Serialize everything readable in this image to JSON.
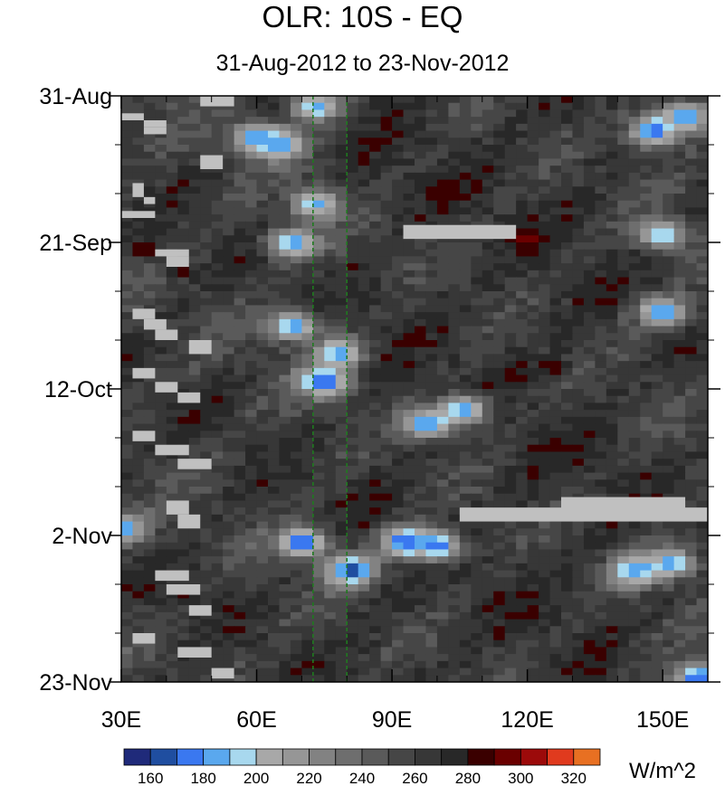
{
  "chart_data": {
    "type": "heatmap",
    "title": "OLR: 10S - EQ",
    "subtitle": "31-Aug-2012 to 23-Nov-2012",
    "x": {
      "range_deg": [
        30,
        160
      ],
      "ticks": [
        30,
        60,
        90,
        120,
        150
      ],
      "tick_labels": [
        "30E",
        "60E",
        "90E",
        "120E",
        "150E"
      ]
    },
    "y": {
      "range_days": [
        0,
        84
      ],
      "ticks": [
        0,
        21,
        42,
        63,
        84
      ],
      "tick_labels": [
        "31-Aug",
        "21-Sep",
        "12-Oct",
        "2-Nov",
        "23-Nov"
      ]
    },
    "reference_lines_deg": [
      72.5,
      80
    ],
    "colorbar": {
      "unit": "W/m^2",
      "levels": [
        160,
        170,
        180,
        190,
        200,
        210,
        220,
        230,
        240,
        250,
        260,
        270,
        280,
        290,
        300,
        310,
        320
      ],
      "labels": [
        "160",
        "180",
        "200",
        "220",
        "240",
        "260",
        "280",
        "300",
        "320"
      ],
      "colors": [
        "#1f2a7a",
        "#1f4ea0",
        "#3a78f0",
        "#5aa8ee",
        "#a8d8ee",
        "#a8a8a8",
        "#969696",
        "#828282",
        "#6e6e6e",
        "#5a5a5a",
        "#464646",
        "#373737",
        "#282828",
        "#3a0000",
        "#6a0000",
        "#9c0a0a",
        "#e03a1e",
        "#e87022"
      ]
    },
    "low_olr_features": [
      {
        "lon": 73,
        "day": 1.5,
        "value": 185
      },
      {
        "lon": 60,
        "day": 6,
        "value": 180
      },
      {
        "lon": 65,
        "day": 7,
        "value": 178
      },
      {
        "lon": 148,
        "day": 5,
        "value": 170
      },
      {
        "lon": 155,
        "day": 3,
        "value": 178
      },
      {
        "lon": 73,
        "day": 15.5,
        "value": 188
      },
      {
        "lon": 68,
        "day": 21,
        "value": 182
      },
      {
        "lon": 150,
        "day": 20,
        "value": 192
      },
      {
        "lon": 150,
        "day": 31,
        "value": 178
      },
      {
        "lon": 68,
        "day": 33,
        "value": 182
      },
      {
        "lon": 75,
        "day": 41,
        "value": 168
      },
      {
        "lon": 78,
        "day": 37,
        "value": 180
      },
      {
        "lon": 98,
        "day": 47,
        "value": 178
      },
      {
        "lon": 106,
        "day": 45,
        "value": 182
      },
      {
        "lon": 70,
        "day": 64,
        "value": 168
      },
      {
        "lon": 81,
        "day": 68,
        "value": 162
      },
      {
        "lon": 93,
        "day": 64,
        "value": 168
      },
      {
        "lon": 100,
        "day": 64.5,
        "value": 172
      },
      {
        "lon": 30,
        "day": 62,
        "value": 178
      },
      {
        "lon": 144,
        "day": 68,
        "value": 176
      },
      {
        "lon": 152,
        "day": 67,
        "value": 184
      },
      {
        "lon": 158,
        "day": 83.5,
        "value": 168
      }
    ],
    "high_olr_features": [
      {
        "lon": 35,
        "day": 22,
        "value": 295
      },
      {
        "lon": 43,
        "day": 25,
        "value": 292
      },
      {
        "lon": 120,
        "day": 20.5,
        "value": 292
      },
      {
        "lon": 126,
        "day": 39,
        "value": 290
      },
      {
        "lon": 44,
        "day": 71,
        "value": 292
      }
    ],
    "missing_segments": [
      {
        "lon": [
          30,
          35
        ],
        "day": [
          2.5,
          3.5
        ]
      },
      {
        "lon": [
          35,
          40
        ],
        "day": [
          3.5,
          4.5
        ]
      },
      {
        "lon": [
          35,
          40
        ],
        "day": [
          4.5,
          5.5
        ]
      },
      {
        "lon": [
          47.5,
          52.5
        ],
        "day": [
          8.5,
          10.5
        ]
      },
      {
        "lon": [
          47.5,
          55
        ],
        "day": [
          0,
          1.5
        ]
      },
      {
        "lon": [
          32.5,
          35
        ],
        "day": [
          12.5,
          14.5
        ]
      },
      {
        "lon": [
          35,
          37.5
        ],
        "day": [
          14.5,
          15.5
        ]
      },
      {
        "lon": [
          30,
          37.5
        ],
        "day": [
          16.5,
          17.5
        ]
      },
      {
        "lon": [
          37.5,
          45
        ],
        "day": [
          22,
          23
        ]
      },
      {
        "lon": [
          40,
          45
        ],
        "day": [
          23,
          24.5
        ]
      },
      {
        "lon": [
          32.5,
          37.5
        ],
        "day": [
          30.5,
          32
        ]
      },
      {
        "lon": [
          35,
          40
        ],
        "day": [
          32,
          33.5
        ]
      },
      {
        "lon": [
          37.5,
          42.5
        ],
        "day": [
          33.5,
          35
        ]
      },
      {
        "lon": [
          45,
          50
        ],
        "day": [
          35,
          37
        ]
      },
      {
        "lon": [
          32.5,
          37.5
        ],
        "day": [
          39,
          40.5
        ]
      },
      {
        "lon": [
          37.5,
          42.5
        ],
        "day": [
          41,
          42.5
        ]
      },
      {
        "lon": [
          42.5,
          47.5
        ],
        "day": [
          42.5,
          44
        ]
      },
      {
        "lon": [
          32.5,
          37.5
        ],
        "day": [
          48,
          49.5
        ]
      },
      {
        "lon": [
          37.5,
          45
        ],
        "day": [
          50,
          51.5
        ]
      },
      {
        "lon": [
          42.5,
          50
        ],
        "day": [
          52,
          53.5
        ]
      },
      {
        "lon": [
          40,
          45
        ],
        "day": [
          58,
          60
        ]
      },
      {
        "lon": [
          42.5,
          47.5
        ],
        "day": [
          60,
          62
        ]
      },
      {
        "lon": [
          37.5,
          45
        ],
        "day": [
          68,
          69.5
        ]
      },
      {
        "lon": [
          40,
          47.5
        ],
        "day": [
          70,
          71.5
        ]
      },
      {
        "lon": [
          45,
          50
        ],
        "day": [
          73,
          74.5
        ]
      },
      {
        "lon": [
          32.5,
          37.5
        ],
        "day": [
          77,
          78.5
        ]
      },
      {
        "lon": [
          42.5,
          50
        ],
        "day": [
          79,
          80.5
        ]
      },
      {
        "lon": [
          50,
          55
        ],
        "day": [
          82,
          83.5
        ]
      },
      {
        "lon": [
          92.5,
          117.5
        ],
        "day": [
          18.5,
          20.5
        ]
      },
      {
        "lon": [
          105,
          160
        ],
        "day": [
          59,
          61
        ]
      },
      {
        "lon": [
          127.5,
          155
        ],
        "day": [
          57.5,
          60
        ]
      }
    ]
  }
}
